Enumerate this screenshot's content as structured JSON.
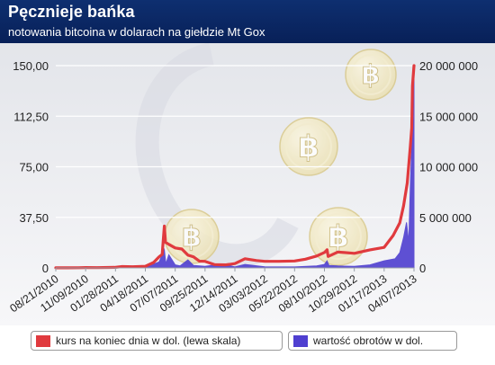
{
  "title": "Pęcznieje bańka",
  "subtitle": "notowania bitcoina w dolarach na giełdzie Mt Gox",
  "colors": {
    "header": "#0b2a66",
    "price": "#e03a3e",
    "volume": "#4f3fd0",
    "coin": "#eadfb0"
  },
  "icons": {
    "coin": "bitcoin-coin-icon"
  },
  "legend": {
    "price_label": "kurs na koniec dnia w dol. (lewa skala)",
    "volume_label": "wartość obrotów w dol."
  },
  "chart_data": {
    "type": "line",
    "title": "Pęcznieje bańka",
    "subtitle": "notowania bitcoina w dolarach na giełdzie Mt Gox",
    "x_tick_labels": [
      "08/21/2010",
      "11/09/2010",
      "01/28/2011",
      "04/18/2011",
      "07/07/2011",
      "09/25/2011",
      "12/14/2011",
      "03/03/2012",
      "05/22/2012",
      "08/10/2012",
      "10/29/2012",
      "01/17/2013",
      "04/07/2013"
    ],
    "y_left_ticks": [
      "0",
      "37,50",
      "75,00",
      "112,50",
      "150,00"
    ],
    "y_left_range": [
      0,
      150
    ],
    "y_right_ticks": [
      "0",
      "5 000 000",
      "10 000 000",
      "15 000 000",
      "20 000 000"
    ],
    "y_right_range": [
      0,
      20000000
    ],
    "grid": true,
    "legend_position": "bottom",
    "series": [
      {
        "name": "kurs na koniec dnia w dol. (lewa skala)",
        "axis": "left",
        "type": "line",
        "points": [
          [
            "2010-08-21",
            0.07
          ],
          [
            "2010-09-20",
            0.06
          ],
          [
            "2010-10-20",
            0.1
          ],
          [
            "2010-11-09",
            0.27
          ],
          [
            "2010-12-10",
            0.23
          ],
          [
            "2011-01-10",
            0.32
          ],
          [
            "2011-01-28",
            0.42
          ],
          [
            "2011-02-15",
            1.0
          ],
          [
            "2011-03-15",
            0.87
          ],
          [
            "2011-04-18",
            1.2
          ],
          [
            "2011-05-10",
            4.0
          ],
          [
            "2011-05-25",
            8.3
          ],
          [
            "2011-06-02",
            10.0
          ],
          [
            "2011-06-08",
            31.0
          ],
          [
            "2011-06-11",
            19.0
          ],
          [
            "2011-06-20",
            17.5
          ],
          [
            "2011-07-07",
            14.8
          ],
          [
            "2011-07-25",
            14.0
          ],
          [
            "2011-08-10",
            9.5
          ],
          [
            "2011-08-25",
            8.2
          ],
          [
            "2011-09-10",
            5.0
          ],
          [
            "2011-09-25",
            4.9
          ],
          [
            "2011-10-20",
            2.5
          ],
          [
            "2011-11-20",
            2.3
          ],
          [
            "2011-12-14",
            3.2
          ],
          [
            "2012-01-10",
            6.8
          ],
          [
            "2012-02-10",
            5.5
          ],
          [
            "2012-03-03",
            4.9
          ],
          [
            "2012-04-10",
            4.9
          ],
          [
            "2012-05-22",
            5.1
          ],
          [
            "2012-06-20",
            6.5
          ],
          [
            "2012-07-20",
            8.8
          ],
          [
            "2012-08-10",
            11.5
          ],
          [
            "2012-08-17",
            13.5
          ],
          [
            "2012-08-20",
            8.5
          ],
          [
            "2012-09-15",
            11.8
          ],
          [
            "2012-10-29",
            10.8
          ],
          [
            "2012-12-10",
            13.4
          ],
          [
            "2013-01-17",
            15.2
          ],
          [
            "2013-02-10",
            24.0
          ],
          [
            "2013-02-28",
            33.4
          ],
          [
            "2013-03-10",
            46.0
          ],
          [
            "2013-03-20",
            63.0
          ],
          [
            "2013-03-28",
            90.0
          ],
          [
            "2013-04-01",
            104.0
          ],
          [
            "2013-04-03",
            135.0
          ],
          [
            "2013-04-07",
            150.0
          ]
        ]
      },
      {
        "name": "wartość obrotów w dol.",
        "axis": "right",
        "type": "area",
        "points": [
          [
            "2010-08-21",
            0
          ],
          [
            "2010-11-09",
            40000
          ],
          [
            "2011-01-28",
            30000
          ],
          [
            "2011-04-18",
            60000
          ],
          [
            "2011-05-25",
            600000
          ],
          [
            "2011-06-08",
            1800000
          ],
          [
            "2011-06-12",
            400000
          ],
          [
            "2011-06-20",
            1300000
          ],
          [
            "2011-07-07",
            300000
          ],
          [
            "2011-07-20",
            200000
          ],
          [
            "2011-08-10",
            800000
          ],
          [
            "2011-08-25",
            250000
          ],
          [
            "2011-09-25",
            150000
          ],
          [
            "2011-11-10",
            400000
          ],
          [
            "2011-12-14",
            100000
          ],
          [
            "2012-01-10",
            350000
          ],
          [
            "2012-03-03",
            120000
          ],
          [
            "2012-05-22",
            100000
          ],
          [
            "2012-07-20",
            200000
          ],
          [
            "2012-08-10",
            350000
          ],
          [
            "2012-08-17",
            700000
          ],
          [
            "2012-08-22",
            250000
          ],
          [
            "2012-09-15",
            200000
          ],
          [
            "2012-10-29",
            150000
          ],
          [
            "2012-12-10",
            300000
          ],
          [
            "2013-01-17",
            700000
          ],
          [
            "2013-02-15",
            900000
          ],
          [
            "2013-02-28",
            1500000
          ],
          [
            "2013-03-10",
            3000000
          ],
          [
            "2013-03-18",
            4500000
          ],
          [
            "2013-03-24",
            2500000
          ],
          [
            "2013-03-28",
            8000000
          ],
          [
            "2013-04-01",
            12000000
          ],
          [
            "2013-04-03",
            16000000
          ],
          [
            "2013-04-05",
            11000000
          ],
          [
            "2013-04-07",
            19000000
          ]
        ]
      }
    ]
  }
}
